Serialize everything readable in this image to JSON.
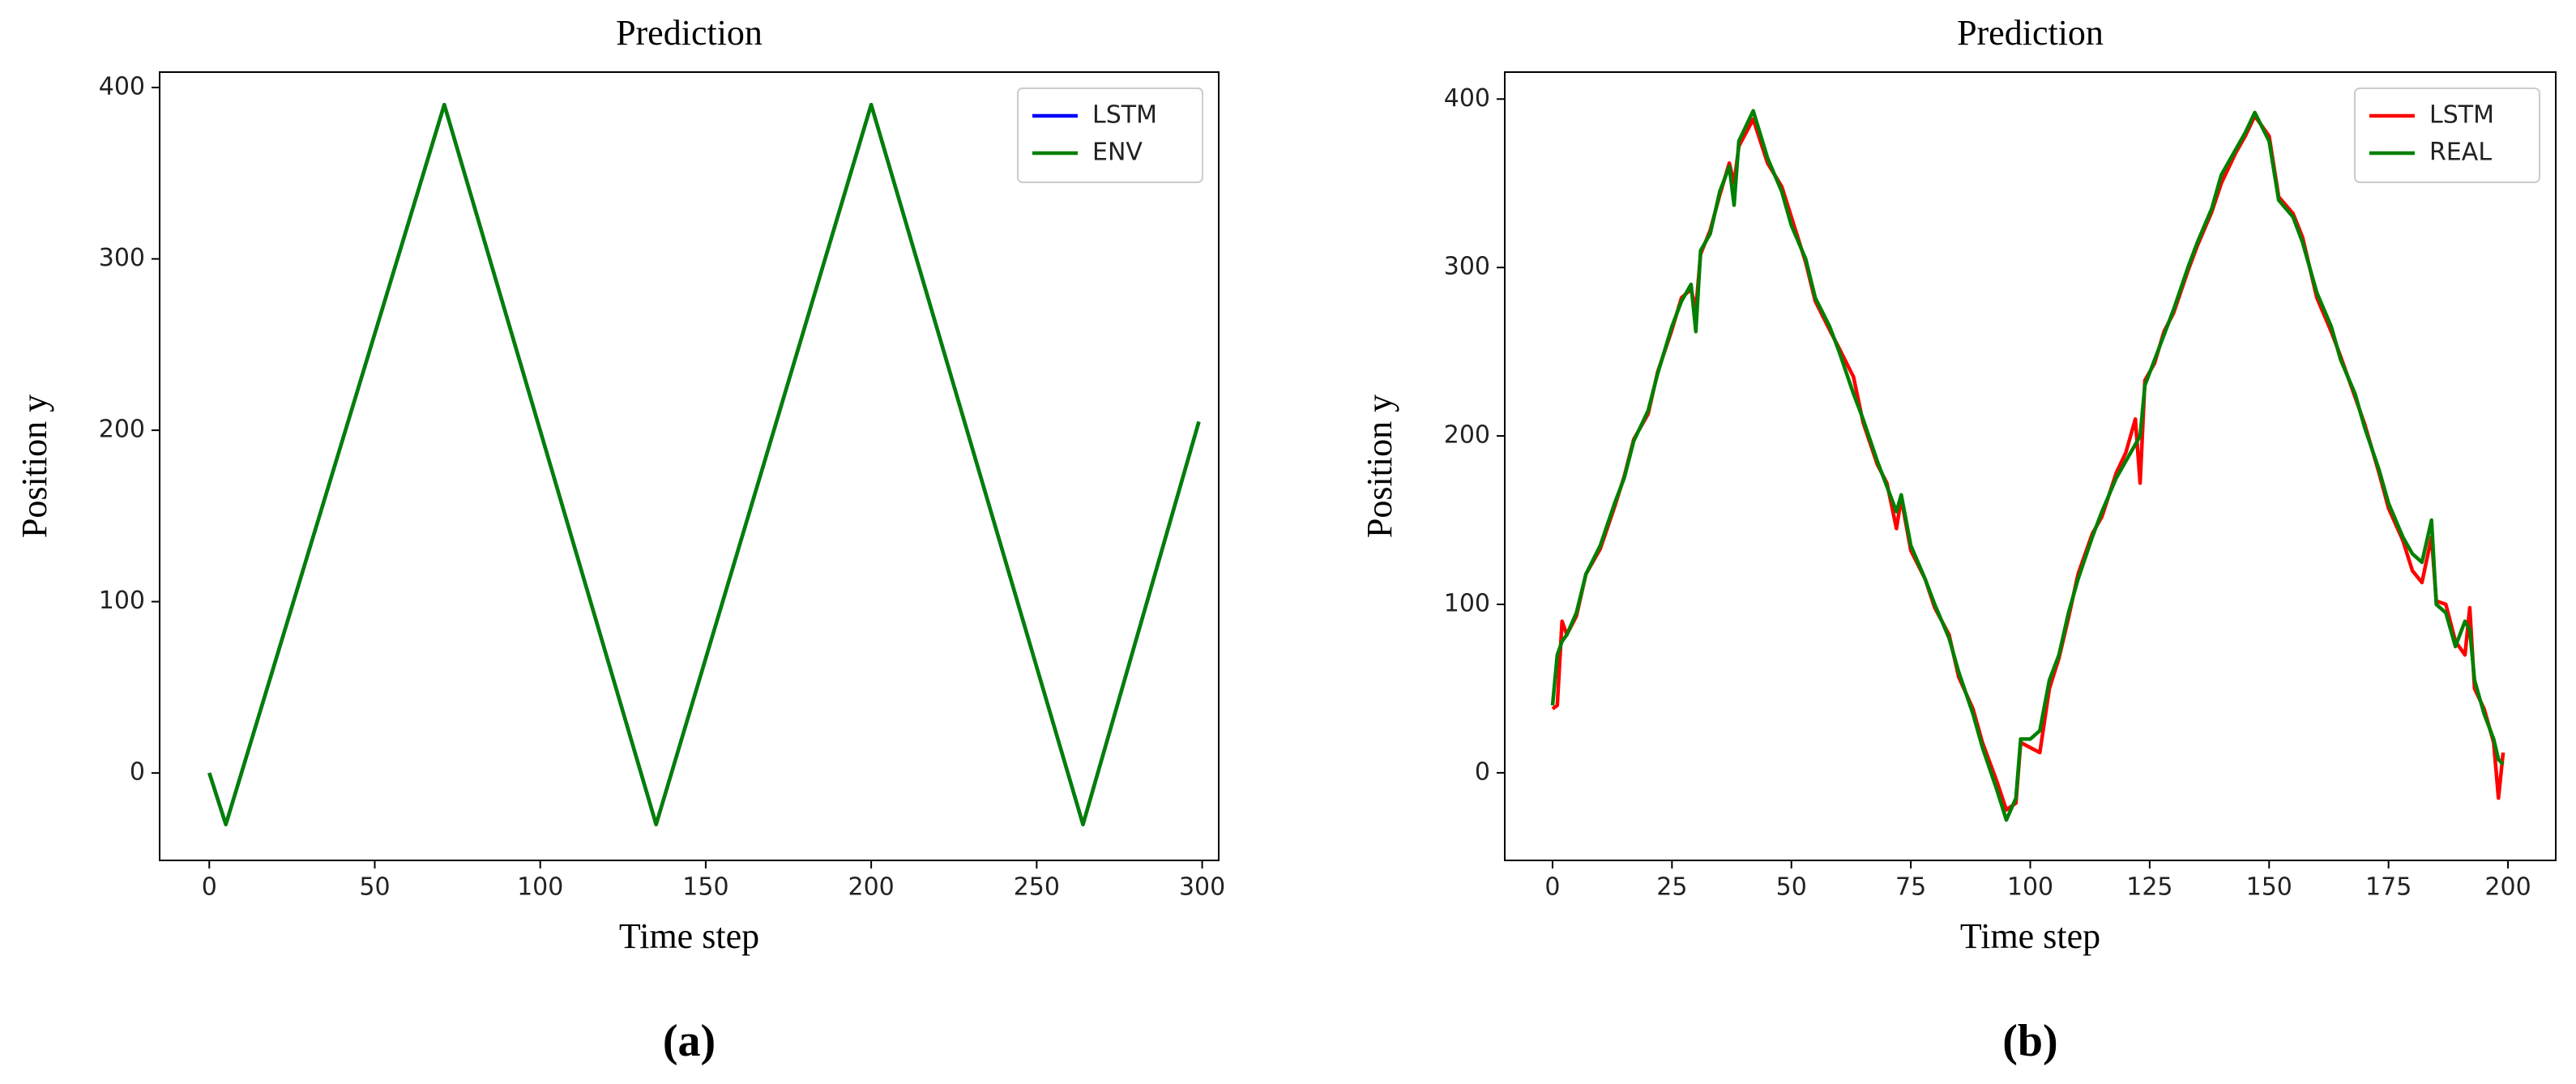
{
  "chart_data": [
    {
      "type": "line",
      "title": "Prediction",
      "xlabel": "Time step",
      "ylabel": "Position y",
      "caption": "(a)",
      "x": [
        0,
        5,
        71,
        135,
        200,
        264,
        299
      ],
      "series": [
        {
          "name": "LSTM",
          "color": "#0000ff",
          "values": [
            0,
            -30,
            390,
            -30,
            390,
            -30,
            205
          ]
        },
        {
          "name": "ENV",
          "color": "#008000",
          "values": [
            0,
            -30,
            390,
            -30,
            390,
            -30,
            205
          ]
        }
      ],
      "xlim": [
        -15,
        305
      ],
      "ylim": [
        -51,
        409
      ],
      "xticks": [
        0,
        50,
        100,
        150,
        200,
        250,
        300
      ],
      "yticks": [
        0,
        100,
        200,
        300,
        400
      ],
      "legend": "upper right"
    },
    {
      "type": "line",
      "title": "Prediction",
      "xlabel": "Time step",
      "ylabel": "Position y",
      "caption": "(b)",
      "x": [
        0,
        1,
        2,
        3,
        5,
        7,
        10,
        13,
        15,
        17,
        20,
        22,
        25,
        27,
        29,
        30,
        31,
        33,
        35,
        37,
        38,
        39,
        42,
        45,
        48,
        50,
        53,
        55,
        58,
        60,
        63,
        65,
        68,
        70,
        72,
        73,
        75,
        78,
        80,
        83,
        85,
        88,
        90,
        93,
        95,
        97,
        98,
        100,
        102,
        104,
        106,
        108,
        110,
        113,
        115,
        118,
        120,
        122,
        123,
        124,
        126,
        128,
        130,
        133,
        135,
        138,
        140,
        143,
        145,
        147,
        150,
        152,
        155,
        157,
        160,
        163,
        165,
        168,
        170,
        173,
        175,
        178,
        180,
        182,
        184,
        185,
        187,
        189,
        191,
        192,
        193,
        195,
        197,
        198,
        199
      ],
      "series": [
        {
          "name": "LSTM",
          "color": "#ff0000",
          "values": [
            38,
            40,
            90,
            82,
            93,
            118,
            133,
            158,
            176,
            198,
            213,
            238,
            263,
            282,
            287,
            275,
            308,
            322,
            343,
            362,
            350,
            372,
            388,
            362,
            348,
            330,
            303,
            280,
            263,
            252,
            235,
            208,
            183,
            172,
            145,
            163,
            132,
            115,
            98,
            82,
            57,
            38,
            18,
            -5,
            -22,
            -18,
            18,
            15,
            12,
            50,
            68,
            92,
            118,
            142,
            152,
            178,
            190,
            210,
            172,
            233,
            243,
            262,
            273,
            298,
            313,
            333,
            350,
            368,
            378,
            390,
            378,
            342,
            332,
            318,
            282,
            262,
            247,
            223,
            207,
            178,
            157,
            138,
            120,
            113,
            140,
            102,
            100,
            78,
            70,
            98,
            50,
            38,
            18,
            -15,
            12
          ]
        },
        {
          "name": "REAL",
          "color": "#008000",
          "values": [
            40,
            70,
            78,
            82,
            95,
            118,
            135,
            160,
            175,
            197,
            215,
            237,
            265,
            280,
            290,
            262,
            310,
            320,
            345,
            360,
            337,
            375,
            393,
            365,
            345,
            325,
            305,
            282,
            265,
            250,
            225,
            210,
            185,
            170,
            155,
            165,
            135,
            115,
            100,
            80,
            60,
            35,
            15,
            -10,
            -28,
            -15,
            20,
            20,
            25,
            55,
            70,
            95,
            115,
            140,
            155,
            175,
            185,
            195,
            200,
            230,
            245,
            260,
            275,
            300,
            315,
            335,
            355,
            370,
            380,
            392,
            375,
            340,
            330,
            315,
            285,
            265,
            245,
            225,
            205,
            180,
            160,
            140,
            130,
            125,
            150,
            100,
            95,
            75,
            90,
            85,
            55,
            35,
            20,
            8,
            5
          ]
        }
      ],
      "xlim": [
        -10,
        210
      ],
      "ylim": [
        -52,
        416
      ],
      "xticks": [
        0,
        25,
        50,
        75,
        100,
        125,
        150,
        175,
        200
      ],
      "yticks": [
        0,
        100,
        200,
        300,
        400
      ],
      "legend": "upper right"
    }
  ]
}
